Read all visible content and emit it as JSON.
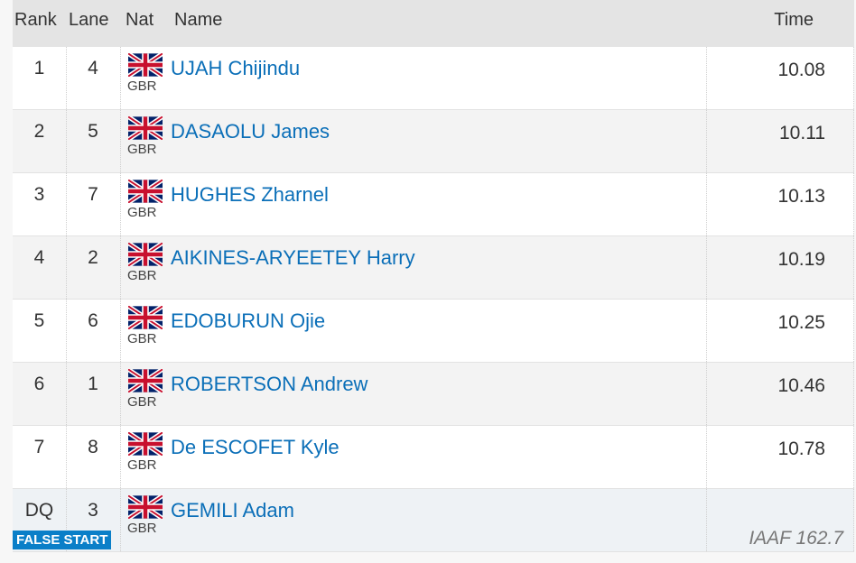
{
  "table": {
    "header": [
      "Rank",
      "Lane",
      "Nat",
      "Name",
      "Time"
    ],
    "rows": [
      {
        "rank": "1",
        "lane": "4",
        "nat": "GBR",
        "name": "UJAH Chijindu",
        "time": "10.08"
      },
      {
        "rank": "2",
        "lane": "5",
        "nat": "GBR",
        "name": "DASAOLU James",
        "time": "10.11"
      },
      {
        "rank": "3",
        "lane": "7",
        "nat": "GBR",
        "name": "HUGHES Zharnel",
        "time": "10.13"
      },
      {
        "rank": "4",
        "lane": "2",
        "nat": "GBR",
        "name": "AIKINES-ARYEETEY Harry",
        "time": "10.19"
      },
      {
        "rank": "5",
        "lane": "6",
        "nat": "GBR",
        "name": "EDOBURUN Ojie",
        "time": "10.25"
      },
      {
        "rank": "6",
        "lane": "1",
        "nat": "GBR",
        "name": "ROBERTSON Andrew",
        "time": "10.46"
      },
      {
        "rank": "7",
        "lane": "8",
        "nat": "GBR",
        "name": "De ESCOFET Kyle",
        "time": "10.78"
      },
      {
        "rank": "DQ",
        "lane": "3",
        "nat": "GBR",
        "name": "GEMILI Adam",
        "badge": "FALSE START",
        "note": "IAAF 162.7"
      }
    ]
  }
}
